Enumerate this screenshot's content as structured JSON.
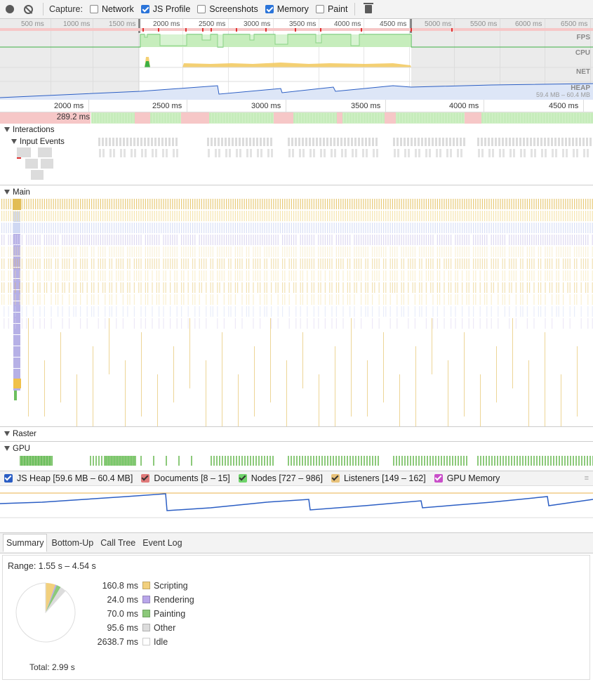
{
  "toolbar": {
    "capture_label": "Capture:",
    "network_label": "Network",
    "js_profile_label": "JS Profile",
    "screenshots_label": "Screenshots",
    "memory_label": "Memory",
    "paint_label": "Paint",
    "network_checked": false,
    "js_profile_checked": true,
    "screenshots_checked": false,
    "memory_checked": true,
    "paint_checked": false
  },
  "overview": {
    "ticks": [
      "500 ms",
      "1000 ms",
      "1500 ms",
      "2000 ms",
      "2500 ms",
      "3000 ms",
      "3500 ms",
      "4000 ms",
      "4500 ms",
      "5000 ms",
      "5500 ms",
      "6000 ms",
      "6500 ms"
    ],
    "lanes": {
      "fps": "FPS",
      "cpu": "CPU",
      "net": "NET",
      "heap": "HEAP"
    },
    "heap_range": "59.4 MB – 60.4 MB"
  },
  "ruler": {
    "ticks": [
      "2000 ms",
      "2500 ms",
      "3000 ms",
      "3500 ms",
      "4000 ms",
      "4500 ms"
    ],
    "frame_label": "289.2 ms"
  },
  "tracks": {
    "interactions": "Interactions",
    "input_events": "Input Events",
    "main": "Main",
    "raster": "Raster",
    "gpu": "GPU"
  },
  "memory": {
    "js_heap": "JS Heap [59.6 MB – 60.4 MB]",
    "documents": "Documents [8 – 15]",
    "nodes": "Nodes [727 – 986]",
    "listeners": "Listeners [149 – 162]",
    "gpu_memory": "GPU Memory",
    "colors": {
      "js_heap": "#2b5ec4",
      "documents": "#d9534f",
      "nodes": "#3cb043",
      "listeners": "#e8b24a",
      "gpu_memory": "#c94fc9"
    }
  },
  "tabs": [
    "Summary",
    "Bottom-Up",
    "Call Tree",
    "Event Log"
  ],
  "summary": {
    "range": "Range: 1.55 s – 4.54 s",
    "total": "Total: 2.99 s",
    "legend": [
      {
        "value": "160.8 ms",
        "label": "Scripting",
        "color": "#f2d07d"
      },
      {
        "value": "24.0 ms",
        "label": "Rendering",
        "color": "#b9a6ea"
      },
      {
        "value": "70.0 ms",
        "label": "Painting",
        "color": "#8cc97a"
      },
      {
        "value": "95.6 ms",
        "label": "Other",
        "color": "#dcdcdc"
      },
      {
        "value": "2638.7 ms",
        "label": "Idle",
        "color": "#ffffff"
      }
    ],
    "pie_ms": [
      160.8,
      24.0,
      70.0,
      95.6,
      2638.7
    ]
  }
}
